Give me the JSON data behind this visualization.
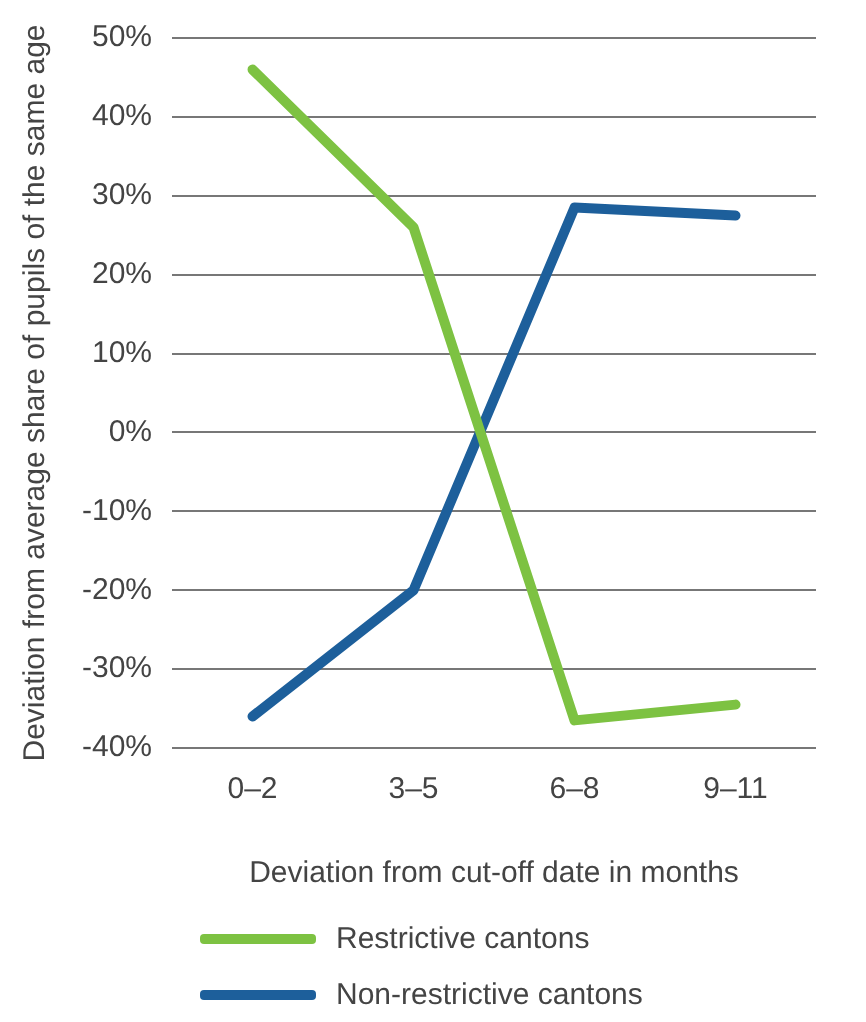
{
  "chart_data": {
    "type": "line",
    "xlabel": "Deviation from cut-off date in months",
    "ylabel": "Deviation from average share of pupils of the same age",
    "categories": [
      "0–2",
      "3–5",
      "6–8",
      "9–11"
    ],
    "series": [
      {
        "name": "Restrictive cantons",
        "color": "#7dc242",
        "values": [
          46,
          26,
          -36.5,
          -34.5
        ]
      },
      {
        "name": "Non-restrictive cantons",
        "color": "#1d5f9b",
        "values": [
          -36,
          -20,
          28.5,
          27.5
        ]
      }
    ],
    "ylim": [
      -40,
      50
    ],
    "yticks": [
      {
        "value": -40,
        "label": "-40%"
      },
      {
        "value": -30,
        "label": "-30%"
      },
      {
        "value": -20,
        "label": "-20%"
      },
      {
        "value": -10,
        "label": "-10%"
      },
      {
        "value": 0,
        "label": "0%"
      },
      {
        "value": 10,
        "label": "10%"
      },
      {
        "value": 20,
        "label": "20%"
      },
      {
        "value": 30,
        "label": "30%"
      },
      {
        "value": 40,
        "label": "40%"
      },
      {
        "value": 50,
        "label": "50%"
      }
    ],
    "grid": "y",
    "legend": "bottom",
    "marker": "none"
  }
}
